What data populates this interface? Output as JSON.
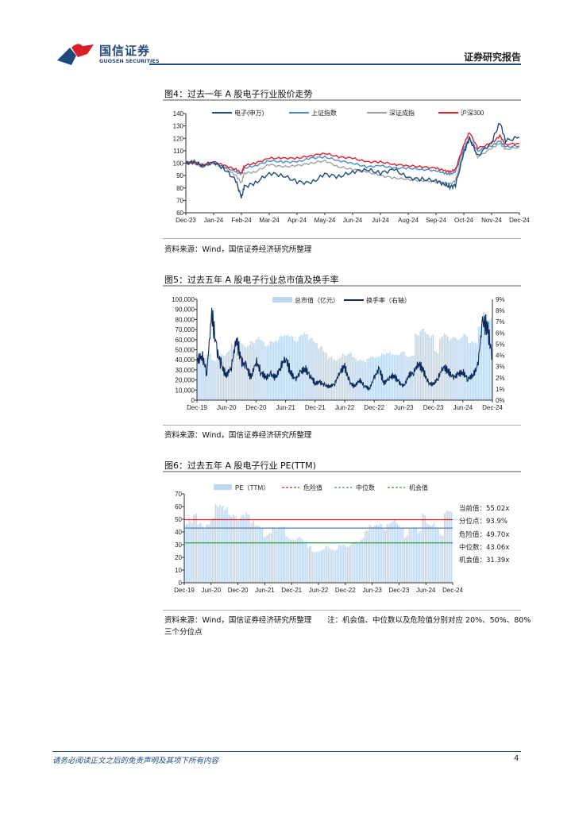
{
  "header": {
    "logo_cn": "国信证券",
    "logo_en": "GUOSEN SECURITIES",
    "report_type": "证券研究报告"
  },
  "fig4": {
    "title": "图4：过去一年 A 股电子行业股价走势",
    "source": "资料来源：Wind，国信证券经济研究所整理"
  },
  "fig5": {
    "title": "图5：过去五年 A 股电子行业总市值及换手率",
    "source": "资料来源：Wind，国信证券经济研究所整理"
  },
  "fig6": {
    "title": "图6：过去五年 A 股电子行业 PE(TTM)",
    "source": "资料来源：Wind，国信证券经济研究所整理",
    "note": "注：机会值、中位数以及危险值分别对应 20%、50%、80%",
    "note2": "三个分位点",
    "annotations": [
      "当前值：55.02x",
      "分位点：93.9%",
      "危险值：49.70x",
      "中位数：43.06x",
      "机会值：31.39x"
    ]
  },
  "footer": {
    "disclaimer": "请务必阅读正文之后的免责声明及其项下所有内容",
    "page": "4"
  },
  "chart_data": [
    {
      "type": "line",
      "title": "过去一年 A 股电子行业股价走势",
      "ylim": [
        60,
        140
      ],
      "yticks": [
        "60",
        "70",
        "80",
        "90",
        "100",
        "110",
        "120",
        "130",
        "140"
      ],
      "xticks": [
        "Dec-23",
        "Jan-24",
        "Feb-24",
        "Mar-24",
        "Apr-24",
        "May-24",
        "Jun-24",
        "Jul-24",
        "Aug-24",
        "Sep-24",
        "Oct-24",
        "Nov-24",
        "Dec-24"
      ],
      "x": [
        0,
        0.3,
        0.6,
        1,
        1.4,
        1.8,
        2,
        2.1,
        2.5,
        3,
        3.5,
        4,
        4.5,
        5,
        5.5,
        6,
        6.5,
        7,
        7.5,
        8,
        8.5,
        9,
        9.3,
        9.5,
        9.7,
        10,
        10.2,
        10.5,
        11,
        11.3,
        11.5,
        12
      ],
      "series": [
        {
          "name": "电子(申万)",
          "color": "#1f4e79",
          "values": [
            100,
            101,
            98,
            101,
            95,
            86,
            72,
            81,
            84,
            92,
            90,
            85,
            84,
            91,
            89,
            93,
            95,
            92,
            95,
            88,
            87,
            86,
            83,
            81,
            82,
            108,
            120,
            106,
            117,
            133,
            118,
            121
          ]
        },
        {
          "name": "上证指数",
          "color": "#4a8ad0",
          "values": [
            100,
            101,
            98,
            100,
            97,
            93,
            91,
            96,
            98,
            102,
            101,
            101,
            104,
            105,
            102,
            100,
            97,
            98,
            96,
            96,
            95,
            94,
            92,
            91,
            93,
            112,
            120,
            110,
            114,
            118,
            113,
            114
          ]
        },
        {
          "name": "深证成指",
          "color": "#a0a0a0",
          "values": [
            100,
            100,
            97,
            100,
            96,
            90,
            84,
            92,
            93,
            99,
            97,
            98,
            100,
            102,
            97,
            95,
            93,
            90,
            88,
            87,
            86,
            85,
            84,
            83,
            86,
            110,
            121,
            105,
            112,
            116,
            111,
            113
          ]
        },
        {
          "name": "沪深300",
          "color": "#e0202a",
          "values": [
            100,
            101,
            98,
            101,
            98,
            95,
            92,
            98,
            100,
            104,
            104,
            104,
            106,
            108,
            105,
            104,
            101,
            101,
            99,
            98,
            97,
            96,
            94,
            93,
            95,
            115,
            125,
            112,
            116,
            122,
            115,
            116
          ]
        }
      ]
    },
    {
      "type": "bar+line",
      "title": "过去五年 A 股电子行业总市值及换手率",
      "ylim": [
        0,
        100000
      ],
      "y2lim": [
        0,
        9
      ],
      "yticks": [
        "0",
        "10,000",
        "20,000",
        "30,000",
        "40,000",
        "50,000",
        "60,000",
        "70,000",
        "80,000",
        "90,000",
        "100,000"
      ],
      "y2ticks": [
        "0%",
        "1%",
        "2%",
        "3%",
        "4%",
        "5%",
        "6%",
        "7%",
        "8%",
        "9%"
      ],
      "xticks": [
        "Dec-19",
        "Jun-20",
        "Dec-20",
        "Jun-21",
        "Dec-21",
        "Jun-22",
        "Dec-22",
        "Jun-23",
        "Dec-23",
        "Jun-24",
        "Dec-24"
      ],
      "series": [
        {
          "name": "总市值（亿元）",
          "color": "#bdd7ee",
          "values": [
            42000,
            43000,
            45000,
            40000,
            42000,
            45000,
            48000,
            55000,
            58000,
            55000,
            54000,
            57000,
            62000,
            58000,
            55000,
            57000,
            60000,
            62000,
            66000,
            62000,
            60000,
            63000,
            67000,
            60000,
            58000,
            52000,
            48000,
            42000,
            40000,
            42000,
            45000,
            47000,
            42000,
            40000,
            38000,
            42000,
            42000,
            44000,
            45000,
            48000,
            44000,
            46000,
            47000,
            44000,
            43000,
            66000,
            69000,
            67000,
            63000,
            48000,
            62000,
            65000,
            61000,
            61000,
            62000,
            64000,
            58000,
            56000,
            75000,
            85000,
            82000
          ]
        },
        {
          "name": "换手率（右轴）",
          "color": "#0d2a5c",
          "values": [
            3.5,
            4.0,
            2.5,
            7.8,
            4.5,
            3.0,
            2.2,
            3.0,
            5.5,
            3.5,
            3.0,
            2.0,
            3.5,
            2.5,
            2.0,
            2.3,
            2.0,
            3.0,
            3.8,
            2.5,
            1.8,
            2.5,
            2.8,
            2.2,
            1.5,
            1.6,
            1.3,
            1.2,
            1.5,
            2.5,
            3.0,
            1.6,
            1.2,
            1.8,
            1.3,
            1.0,
            2.0,
            2.8,
            1.5,
            2.0,
            2.2,
            1.6,
            1.2,
            2.2,
            2.5,
            3.3,
            2.6,
            1.5,
            1.4,
            2.0,
            3.0,
            2.6,
            2.0,
            2.3,
            2.5,
            1.9,
            2.2,
            3.0,
            7.0,
            6.5,
            3.8
          ]
        }
      ]
    },
    {
      "type": "bar",
      "title": "过去五年 A 股电子行业 PE(TTM)",
      "ylim": [
        0,
        70
      ],
      "yticks": [
        "0",
        "10",
        "20",
        "30",
        "40",
        "50",
        "60",
        "70"
      ],
      "xticks": [
        "Dec-19",
        "Jun-20",
        "Dec-20",
        "Jun-21",
        "Dec-21",
        "Jun-22",
        "Dec-22",
        "Jun-23",
        "Dec-23",
        "Jun-24",
        "Dec-24"
      ],
      "series": [
        {
          "name": "PE（TTM）",
          "color": "#bdd7ee",
          "values": [
            45,
            48,
            55,
            46,
            43,
            47,
            50,
            60,
            62,
            58,
            52,
            54,
            50,
            52,
            55,
            48,
            44,
            44,
            37,
            38,
            43,
            44,
            43,
            36,
            35,
            34,
            35,
            33,
            28,
            24,
            25,
            26,
            28,
            27,
            26,
            29,
            30,
            29,
            31,
            32,
            35,
            40,
            45,
            46,
            45,
            42,
            47,
            48,
            46,
            44,
            36,
            42,
            44,
            40,
            53,
            47,
            46,
            42,
            38,
            56,
            55
          ]
        }
      ],
      "hlines": [
        {
          "name": "危险值",
          "value": 49.7,
          "color": "#e0202a"
        },
        {
          "name": "中位数",
          "value": 43.06,
          "color": "#5a7fb0"
        },
        {
          "name": "机会值",
          "value": 31.39,
          "color": "#2aa040"
        }
      ]
    }
  ]
}
